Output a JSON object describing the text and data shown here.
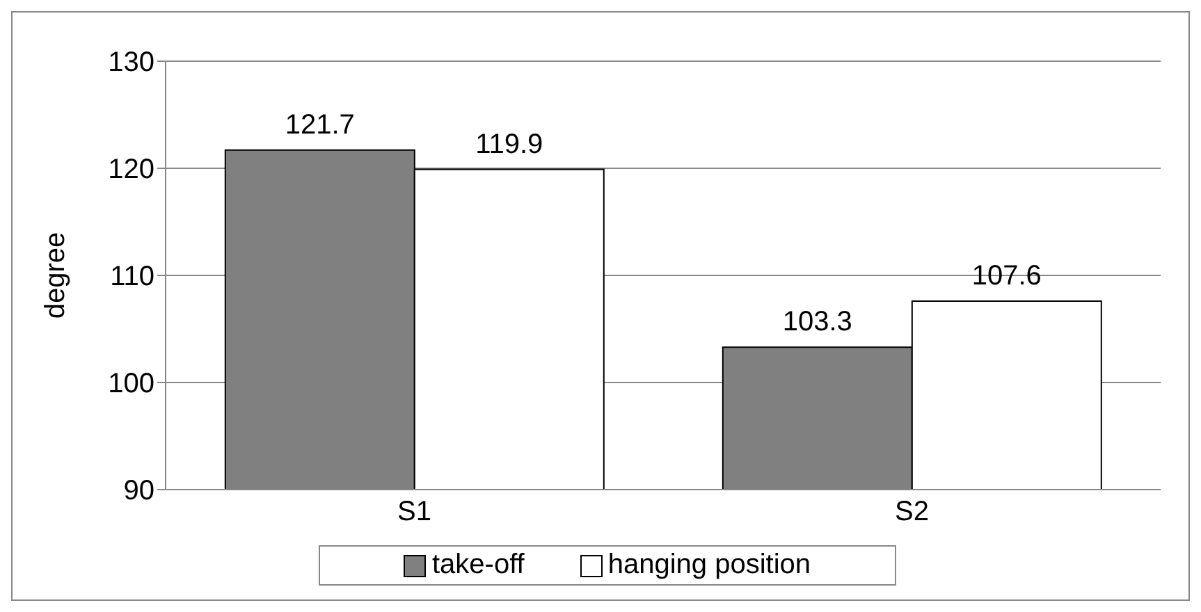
{
  "chart_data": {
    "type": "bar",
    "ylabel": "degree",
    "categories": [
      "S1",
      "S2"
    ],
    "series": [
      {
        "name": "take-off",
        "color": "#808080",
        "values": [
          121.7,
          103.3
        ]
      },
      {
        "name": "hanging position",
        "color": "#ffffff",
        "values": [
          119.9,
          107.6
        ]
      }
    ],
    "ylim": [
      90,
      130
    ],
    "yticks": [
      90,
      100,
      110,
      120,
      130
    ],
    "grid": "y",
    "legend": "bottom",
    "data_labels": true
  }
}
